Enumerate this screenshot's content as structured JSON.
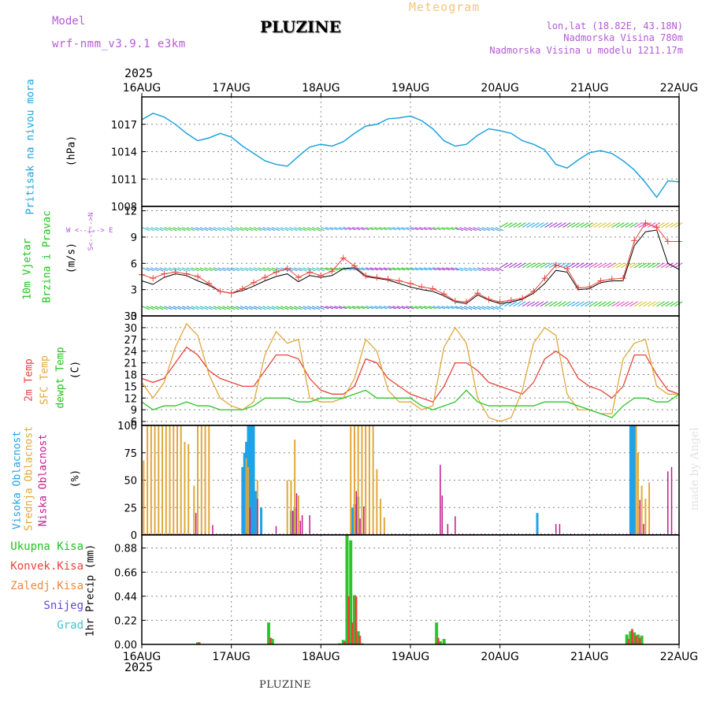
{
  "header": {
    "model_label": "Model",
    "model_name": "wrf-nmm_v3.9.1  e3km",
    "title": "PLUZINE",
    "meteogram": "Meteogram",
    "lonlat": "lon,lat (18.82E, 43.18N)",
    "elev": "Nadmorska Visina 780m",
    "elev_model": "Nadmorska Visina u modelu 1211.17m",
    "year_top": "2025",
    "year_bottom": "2025",
    "footer": "PLUZINE",
    "watermark": "made by Angel"
  },
  "colors": {
    "pressure": "#1ba3dc",
    "wind_green": "#22c21e",
    "wind_purple": "#9b2fc9",
    "temp2m": "#e8443c",
    "sfc": "#e0a83a",
    "dewpt": "#2ec52a",
    "high_cloud": "#1fa3e6",
    "mid_cloud": "#e0a83a",
    "low_cloud": "#c21a8c",
    "rain_total": "#2ec52a",
    "conv": "#e8443c",
    "frozen": "#f0883a",
    "snow": "#5b4bd6",
    "hail": "#3cc8c8"
  },
  "axis_days": [
    "16AUG",
    "17AUG",
    "18AUG",
    "19AUG",
    "20AUG",
    "21AUG",
    "22AUG"
  ],
  "panels": {
    "pressure": {
      "label": "Pritisak na nivou mora",
      "unit": "(hPa)"
    },
    "wind": {
      "label1": "10m Vjetar",
      "label2": "Brzina i Pravac",
      "unit": "(m/s)",
      "compass": "W <--|--> E",
      "compass_v": "S<--|-->N"
    },
    "temp": {
      "label1": "2m Temp",
      "label2": "SFC Temp",
      "label3": "dewpt Temp",
      "unit": "(C)"
    },
    "cloud": {
      "label1": "Visoka Oblacnost",
      "label2": "Srednja Oblacnost",
      "label3": "Niska Oblacnost",
      "unit": "(%)"
    },
    "precip": {
      "l1": "Ukupna Kisa",
      "l2": "Konvek.Kisa",
      "l3": "Zaledj.Kisa",
      "l4": "Snijeg",
      "l5": "Grad",
      "unit": "1hr Precip (mm)"
    }
  },
  "chart_data": [
    {
      "type": "line",
      "title": "Pritisak na nivou mora",
      "ylabel": "hPa",
      "ylim": [
        1008,
        1020
      ],
      "yticks": [
        1008,
        1011,
        1014,
        1017
      ],
      "x_hours": [
        0,
        3,
        6,
        9,
        12,
        15,
        18,
        21,
        24,
        27,
        30,
        33,
        36,
        39,
        42,
        45,
        48,
        51,
        54,
        57,
        60,
        63,
        66,
        69,
        72,
        75,
        78,
        81,
        84,
        87,
        90,
        93,
        96,
        99,
        102,
        105,
        108,
        111,
        114,
        117,
        120,
        123,
        126,
        129,
        132,
        135,
        138,
        141,
        144
      ],
      "values": [
        1017.5,
        1018.2,
        1017.8,
        1017.0,
        1016.0,
        1015.2,
        1015.5,
        1016.0,
        1015.6,
        1014.6,
        1013.8,
        1013.0,
        1012.6,
        1012.4,
        1013.5,
        1014.5,
        1014.8,
        1014.6,
        1015.1,
        1016.0,
        1016.8,
        1017.0,
        1017.6,
        1017.7,
        1017.9,
        1017.4,
        1016.5,
        1015.2,
        1014.6,
        1014.8,
        1015.8,
        1016.5,
        1016.3,
        1016.0,
        1015.2,
        1014.8,
        1014.2,
        1012.6,
        1012.2,
        1013.1,
        1013.9,
        1014.1,
        1013.8,
        1013.0,
        1012.0,
        1010.6,
        1009.0,
        1010.8,
        1010.7
      ]
    },
    {
      "type": "line",
      "title": "10m Vjetar Brzina i Pravac",
      "ylabel": "m/s",
      "ylim": [
        0,
        12.5
      ],
      "yticks": [
        0,
        3,
        6,
        9,
        12
      ],
      "x_hours": [
        0,
        3,
        6,
        9,
        12,
        15,
        18,
        21,
        24,
        27,
        30,
        33,
        36,
        39,
        42,
        45,
        48,
        51,
        54,
        57,
        60,
        63,
        66,
        69,
        72,
        75,
        78,
        81,
        84,
        87,
        90,
        93,
        96,
        99,
        102,
        105,
        108,
        111,
        114,
        117,
        120,
        123,
        126,
        129,
        132,
        135,
        138,
        141,
        144
      ],
      "speed": [
        4.0,
        3.6,
        4.4,
        4.8,
        4.6,
        4.0,
        3.5,
        2.8,
        2.6,
        2.9,
        3.4,
        4.0,
        4.5,
        4.8,
        3.9,
        4.6,
        4.4,
        4.6,
        5.4,
        5.5,
        4.5,
        4.3,
        4.1,
        3.7,
        3.3,
        3.0,
        2.8,
        2.3,
        1.6,
        1.4,
        2.4,
        1.8,
        1.4,
        1.6,
        1.9,
        2.6,
        3.7,
        5.2,
        5.0,
        3.0,
        3.1,
        3.8,
        4.0,
        4.0,
        8.0,
        9.6,
        9.8,
        6.0,
        5.3
      ],
      "gust": [
        4.7,
        4.3,
        4.8,
        5.0,
        4.8,
        4.5,
        3.7,
        2.8,
        2.6,
        3.1,
        3.8,
        4.4,
        5.0,
        5.4,
        4.4,
        5.0,
        4.6,
        5.1,
        6.6,
        5.7,
        4.6,
        4.4,
        4.2,
        4.0,
        3.7,
        3.3,
        3.1,
        2.5,
        1.7,
        1.6,
        2.6,
        1.9,
        1.6,
        1.8,
        2.0,
        2.8,
        4.3,
        5.8,
        5.4,
        3.2,
        3.3,
        4.0,
        4.2,
        4.3,
        8.6,
        10.6,
        10.1,
        8.5,
        8.5
      ]
    },
    {
      "type": "line",
      "title": "Temperature",
      "ylabel": "C",
      "ylim": [
        5,
        33
      ],
      "yticks": [
        6,
        9,
        12,
        15,
        18,
        21,
        24,
        27,
        30,
        33
      ],
      "x_hours": [
        0,
        3,
        6,
        9,
        12,
        15,
        18,
        21,
        24,
        27,
        30,
        33,
        36,
        39,
        42,
        45,
        48,
        51,
        54,
        57,
        60,
        63,
        66,
        69,
        72,
        75,
        78,
        81,
        84,
        87,
        90,
        93,
        96,
        99,
        102,
        105,
        108,
        111,
        114,
        117,
        120,
        123,
        126,
        129,
        132,
        135,
        138,
        141,
        144
      ],
      "series": [
        {
          "name": "2m Temp",
          "values": [
            17,
            16,
            17,
            21,
            25,
            23,
            19,
            17,
            16,
            15,
            15,
            19,
            23,
            23,
            22,
            17,
            14,
            13,
            13,
            15,
            22,
            21,
            17,
            15,
            13,
            12,
            11,
            15,
            21,
            21,
            19,
            16,
            15,
            14,
            13,
            16,
            22,
            24,
            22,
            17,
            15,
            14,
            12,
            15,
            23,
            23,
            18,
            14,
            13
          ]
        },
        {
          "name": "SFC Temp",
          "values": [
            16,
            12,
            16,
            25,
            31,
            28,
            18,
            12,
            10,
            9,
            11,
            23,
            29,
            26,
            27,
            12,
            11,
            11,
            12,
            17,
            27,
            24,
            14,
            11,
            11,
            9,
            10,
            25,
            30,
            26,
            12,
            7,
            6,
            7,
            14,
            26,
            30,
            28,
            13,
            9,
            9,
            8,
            8,
            22,
            26,
            27,
            15,
            13,
            13
          ]
        },
        {
          "name": "dewpt Temp",
          "values": [
            11,
            9,
            10,
            10,
            11,
            10,
            10,
            9,
            9,
            9,
            10,
            12,
            12,
            12,
            11,
            11,
            12,
            12,
            12,
            13,
            14,
            12,
            12,
            12,
            12,
            10,
            9,
            10,
            11,
            14,
            11,
            10,
            10,
            10,
            10,
            10,
            11,
            11,
            11,
            10,
            9,
            8,
            7,
            10,
            12,
            12,
            11,
            11,
            13
          ]
        }
      ]
    },
    {
      "type": "bar",
      "title": "Oblacnost",
      "ylabel": "%",
      "ylim": [
        0,
        100
      ],
      "yticks": [
        0,
        25,
        50,
        75,
        100
      ],
      "series": [
        {
          "name": "Visoka Oblacnost",
          "points": [
            [
              27,
              62
            ],
            [
              27.5,
              75
            ],
            [
              28,
              85
            ],
            [
              28.5,
              100
            ],
            [
              29,
              100
            ],
            [
              29.5,
              100
            ],
            [
              30,
              100
            ],
            [
              30.5,
              40
            ],
            [
              32,
              25
            ],
            [
              40,
              22
            ],
            [
              41,
              25
            ],
            [
              56.5,
              25
            ],
            [
              57,
              28
            ],
            [
              58,
              35
            ],
            [
              106,
              20
            ],
            [
              131,
              100
            ],
            [
              131.5,
              100
            ],
            [
              132,
              100
            ]
          ]
        },
        {
          "name": "Srednja Oblacnost",
          "points": [
            [
              0.5,
              68
            ],
            [
              1.5,
              100
            ],
            [
              2.5,
              100
            ],
            [
              3.5,
              100
            ],
            [
              4.5,
              100
            ],
            [
              5.5,
              100
            ],
            [
              6.5,
              100
            ],
            [
              7.5,
              100
            ],
            [
              8.5,
              100
            ],
            [
              9.5,
              100
            ],
            [
              10.5,
              100
            ],
            [
              11.5,
              85
            ],
            [
              12.5,
              83
            ],
            [
              14,
              45
            ],
            [
              15,
              100
            ],
            [
              16,
              100
            ],
            [
              17,
              100
            ],
            [
              18,
              100
            ],
            [
              28,
              70
            ],
            [
              28.5,
              62
            ],
            [
              31,
              50
            ],
            [
              39,
              50
            ],
            [
              40,
              50
            ],
            [
              41,
              87
            ],
            [
              42,
              36
            ],
            [
              56,
              99
            ],
            [
              57,
              100
            ],
            [
              58,
              100
            ],
            [
              59,
              100
            ],
            [
              60,
              100
            ],
            [
              61,
              100
            ],
            [
              62,
              100
            ],
            [
              63,
              60
            ],
            [
              64,
              33
            ],
            [
              65,
              16
            ],
            [
              132.5,
              100
            ],
            [
              133,
              75
            ],
            [
              134,
              45
            ],
            [
              135,
              33
            ],
            [
              136,
              48
            ]
          ]
        },
        {
          "name": "Niska Oblacnost",
          "points": [
            [
              14.5,
              20
            ],
            [
              19,
              9
            ],
            [
              29,
              25
            ],
            [
              31,
              33
            ],
            [
              36,
              8
            ],
            [
              40.5,
              22
            ],
            [
              41.5,
              38
            ],
            [
              42.5,
              13
            ],
            [
              43,
              18
            ],
            [
              45,
              18
            ],
            [
              57.5,
              40
            ],
            [
              58.5,
              15
            ],
            [
              59.5,
              26
            ],
            [
              80,
              64
            ],
            [
              80.5,
              36
            ],
            [
              82,
              10
            ],
            [
              84,
              17
            ],
            [
              111,
              10
            ],
            [
              112,
              10
            ],
            [
              133.5,
              32
            ],
            [
              134.5,
              10
            ],
            [
              141,
              58
            ],
            [
              142,
              62
            ]
          ]
        }
      ]
    },
    {
      "type": "bar",
      "title": "1hr Precip",
      "ylabel": "mm",
      "ylim": [
        0,
        1.0
      ],
      "yticks": [
        0,
        0.22,
        0.44,
        0.66,
        0.88
      ],
      "series": [
        {
          "name": "Ukupna Kisa",
          "points": [
            [
              15,
              0.02
            ],
            [
              34,
              0.2
            ],
            [
              34.5,
              0.06
            ],
            [
              35,
              0.05
            ],
            [
              53,
              0.01
            ],
            [
              54,
              0.04
            ],
            [
              55,
              1.0
            ],
            [
              56,
              0.95
            ],
            [
              57,
              0.45
            ],
            [
              58,
              0.12
            ],
            [
              59,
              0.01
            ],
            [
              79,
              0.2
            ],
            [
              80,
              0.03
            ],
            [
              81,
              0.05
            ],
            [
              130,
              0.09
            ],
            [
              131,
              0.12
            ],
            [
              132,
              0.11
            ],
            [
              132.5,
              0.05
            ],
            [
              133,
              0.09
            ],
            [
              134,
              0.08
            ]
          ]
        },
        {
          "name": "Konvek.Kisa",
          "points": [
            [
              15,
              0.02
            ],
            [
              34,
              0.06
            ],
            [
              54,
              0.03
            ],
            [
              55,
              0.44
            ],
            [
              56,
              0.2
            ],
            [
              57,
              0.44
            ],
            [
              58,
              0.08
            ],
            [
              79,
              0.06
            ],
            [
              130,
              0.05
            ],
            [
              131,
              0.14
            ],
            [
              132,
              0.08
            ],
            [
              133,
              0.06
            ]
          ]
        }
      ]
    }
  ]
}
